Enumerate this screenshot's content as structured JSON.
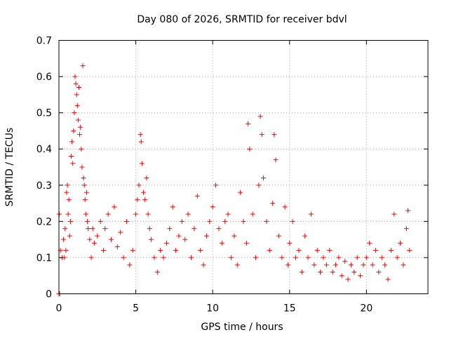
{
  "chart_data": {
    "type": "scatter",
    "title": "Day 080 of 2026, SRMTID for receiver bdvl",
    "xlabel": "GPS time / hours",
    "ylabel": "SRMTID / TECUs",
    "xlim": [
      0,
      24
    ],
    "ylim": [
      0,
      0.7
    ],
    "xticks": [
      0,
      5,
      10,
      15,
      20
    ],
    "xtick_labels": [
      "0",
      "5",
      "10",
      "15",
      "20"
    ],
    "yticks": [
      0,
      0.1,
      0.2,
      0.3,
      0.4,
      0.5,
      0.6,
      0.7
    ],
    "ytick_labels": [
      "0",
      "0.1",
      "0.2",
      "0.3",
      "0.4",
      "0.5",
      "0.6",
      "0.7"
    ],
    "grid": true,
    "marker": "+",
    "series_color": "#ff0000",
    "series": [
      {
        "name": "SRMTID",
        "points": [
          [
            0.0,
            0.0
          ],
          [
            0.02,
            0.22
          ],
          [
            0.05,
            0.0
          ],
          [
            0.1,
            0.12
          ],
          [
            0.2,
            0.1
          ],
          [
            0.3,
            0.15
          ],
          [
            0.35,
            0.1
          ],
          [
            0.4,
            0.18
          ],
          [
            0.45,
            0.12
          ],
          [
            0.5,
            0.28
          ],
          [
            0.55,
            0.3
          ],
          [
            0.6,
            0.22
          ],
          [
            0.65,
            0.26
          ],
          [
            0.7,
            0.16
          ],
          [
            0.75,
            0.2
          ],
          [
            0.8,
            0.38
          ],
          [
            0.85,
            0.42
          ],
          [
            0.9,
            0.36
          ],
          [
            0.95,
            0.45
          ],
          [
            1.0,
            0.5
          ],
          [
            1.05,
            0.6
          ],
          [
            1.1,
            0.58
          ],
          [
            1.15,
            0.55
          ],
          [
            1.2,
            0.52
          ],
          [
            1.25,
            0.48
          ],
          [
            1.3,
            0.57
          ],
          [
            1.35,
            0.44
          ],
          [
            1.4,
            0.46
          ],
          [
            1.45,
            0.4
          ],
          [
            1.5,
            0.35
          ],
          [
            1.55,
            0.63
          ],
          [
            1.6,
            0.32
          ],
          [
            1.65,
            0.3
          ],
          [
            1.7,
            0.26
          ],
          [
            1.75,
            0.22
          ],
          [
            1.8,
            0.28
          ],
          [
            1.85,
            0.2
          ],
          [
            1.9,
            0.18
          ],
          [
            2.0,
            0.15
          ],
          [
            2.1,
            0.1
          ],
          [
            2.2,
            0.18
          ],
          [
            2.3,
            0.14
          ],
          [
            2.5,
            0.16
          ],
          [
            2.7,
            0.2
          ],
          [
            2.9,
            0.12
          ],
          [
            3.0,
            0.18
          ],
          [
            3.2,
            0.22
          ],
          [
            3.4,
            0.15
          ],
          [
            3.6,
            0.24
          ],
          [
            3.8,
            0.13
          ],
          [
            4.0,
            0.17
          ],
          [
            4.2,
            0.1
          ],
          [
            4.4,
            0.2
          ],
          [
            4.6,
            0.08
          ],
          [
            4.8,
            0.12
          ],
          [
            5.0,
            0.22
          ],
          [
            5.1,
            0.26
          ],
          [
            5.2,
            0.3
          ],
          [
            5.3,
            0.44
          ],
          [
            5.35,
            0.42
          ],
          [
            5.4,
            0.36
          ],
          [
            5.5,
            0.28
          ],
          [
            5.6,
            0.26
          ],
          [
            5.7,
            0.32
          ],
          [
            5.8,
            0.22
          ],
          [
            5.9,
            0.18
          ],
          [
            6.0,
            0.15
          ],
          [
            6.2,
            0.1
          ],
          [
            6.4,
            0.06
          ],
          [
            6.6,
            0.12
          ],
          [
            6.8,
            0.1
          ],
          [
            7.0,
            0.14
          ],
          [
            7.2,
            0.18
          ],
          [
            7.4,
            0.24
          ],
          [
            7.6,
            0.12
          ],
          [
            7.8,
            0.16
          ],
          [
            8.0,
            0.2
          ],
          [
            8.2,
            0.15
          ],
          [
            8.4,
            0.22
          ],
          [
            8.6,
            0.1
          ],
          [
            8.8,
            0.18
          ],
          [
            9.0,
            0.27
          ],
          [
            9.2,
            0.12
          ],
          [
            9.4,
            0.08
          ],
          [
            9.6,
            0.16
          ],
          [
            9.8,
            0.2
          ],
          [
            10.0,
            0.24
          ],
          [
            10.2,
            0.3
          ],
          [
            10.4,
            0.18
          ],
          [
            10.6,
            0.14
          ],
          [
            10.8,
            0.2
          ],
          [
            11.0,
            0.22
          ],
          [
            11.2,
            0.1
          ],
          [
            11.4,
            0.16
          ],
          [
            11.6,
            0.08
          ],
          [
            11.8,
            0.28
          ],
          [
            12.0,
            0.2
          ],
          [
            12.2,
            0.14
          ],
          [
            12.3,
            0.47
          ],
          [
            12.4,
            0.4
          ],
          [
            12.6,
            0.22
          ],
          [
            12.8,
            0.1
          ],
          [
            13.0,
            0.3
          ],
          [
            13.1,
            0.49
          ],
          [
            13.2,
            0.44
          ],
          [
            13.3,
            0.32
          ],
          [
            13.5,
            0.2
          ],
          [
            13.7,
            0.12
          ],
          [
            13.9,
            0.25
          ],
          [
            14.0,
            0.44
          ],
          [
            14.1,
            0.37
          ],
          [
            14.3,
            0.16
          ],
          [
            14.5,
            0.1
          ],
          [
            14.7,
            0.24
          ],
          [
            14.9,
            0.08
          ],
          [
            15.0,
            0.14
          ],
          [
            15.2,
            0.2
          ],
          [
            15.4,
            0.1
          ],
          [
            15.6,
            0.12
          ],
          [
            15.8,
            0.06
          ],
          [
            16.0,
            0.16
          ],
          [
            16.2,
            0.1
          ],
          [
            16.4,
            0.22
          ],
          [
            16.6,
            0.08
          ],
          [
            16.8,
            0.12
          ],
          [
            17.0,
            0.06
          ],
          [
            17.2,
            0.1
          ],
          [
            17.4,
            0.08
          ],
          [
            17.6,
            0.12
          ],
          [
            17.8,
            0.06
          ],
          [
            18.0,
            0.08
          ],
          [
            18.2,
            0.1
          ],
          [
            18.4,
            0.05
          ],
          [
            18.6,
            0.09
          ],
          [
            18.8,
            0.04
          ],
          [
            19.0,
            0.08
          ],
          [
            19.2,
            0.06
          ],
          [
            19.4,
            0.1
          ],
          [
            19.6,
            0.05
          ],
          [
            19.8,
            0.08
          ],
          [
            20.0,
            0.1
          ],
          [
            20.2,
            0.14
          ],
          [
            20.4,
            0.08
          ],
          [
            20.6,
            0.12
          ],
          [
            20.8,
            0.06
          ],
          [
            21.0,
            0.1
          ],
          [
            21.2,
            0.08
          ],
          [
            21.4,
            0.04
          ],
          [
            21.6,
            0.12
          ],
          [
            21.8,
            0.22
          ],
          [
            22.0,
            0.1
          ],
          [
            22.2,
            0.14
          ],
          [
            22.4,
            0.08
          ],
          [
            22.6,
            0.18
          ],
          [
            22.7,
            0.23
          ],
          [
            22.8,
            0.12
          ]
        ]
      }
    ]
  }
}
